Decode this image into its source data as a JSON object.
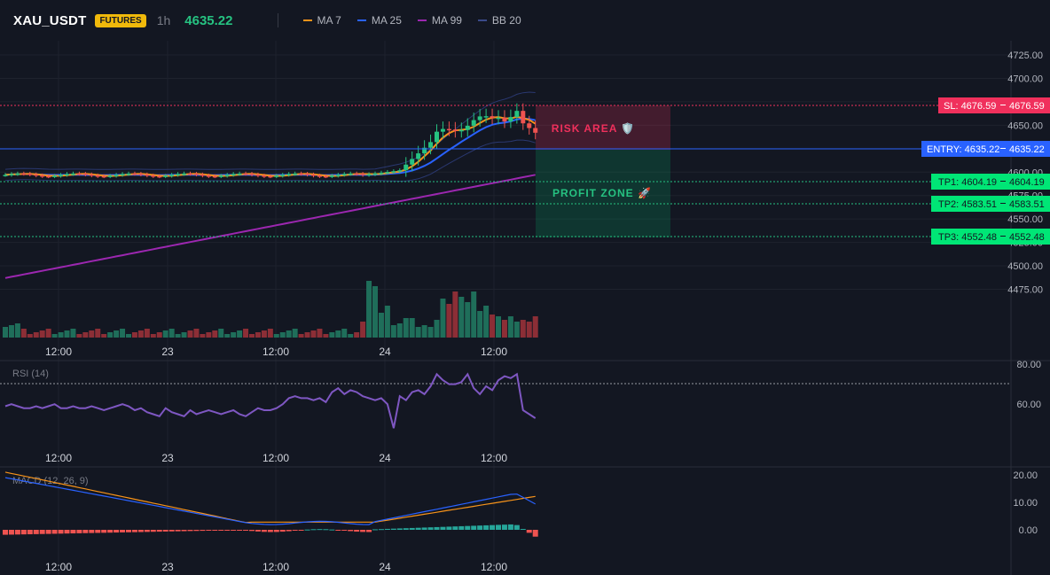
{
  "header": {
    "symbol": "XAU_USDT",
    "badge": "FUTURES",
    "timeframe": "1h",
    "last_price": "4635.22",
    "legend": [
      {
        "label": "MA 7",
        "color": "#f7931a"
      },
      {
        "label": "MA 25",
        "color": "#2962ff"
      },
      {
        "label": "MA 99",
        "color": "#9c27b0"
      },
      {
        "label": "BB 20",
        "color": "#3a4a8a"
      }
    ]
  },
  "colors": {
    "up": "#26c281",
    "down": "#ef5350",
    "background": "#131722",
    "sl": "#f0305c",
    "entry": "#2962ff",
    "tp": "#00e676"
  },
  "price_axis": {
    "ticks": [
      "4725.00",
      "4700.00",
      "4675.00",
      "4650.00",
      "4625.00",
      "4600.00",
      "4575.00",
      "4550.00",
      "4525.00",
      "4500.00",
      "4475.00"
    ],
    "tick_values": [
      4725,
      4700,
      4675,
      4650,
      4625,
      4600,
      4575,
      4550,
      4525,
      4500,
      4475
    ]
  },
  "levels": {
    "sl": {
      "label": "SL: 4676.59",
      "price_label": "4676.59",
      "value": 4676.59
    },
    "entry": {
      "label": "ENTRY: 4635.22",
      "price_label": "4635.22",
      "value": 4635.22
    },
    "tp1": {
      "label": "TP1: 4604.19",
      "price_label": "4604.19",
      "value": 4604.19
    },
    "tp2": {
      "label": "TP2: 4583.51",
      "price_label": "4583.51",
      "value": 4583.51
    },
    "tp3": {
      "label": "TP3: 4552.48",
      "price_label": "4552.48",
      "value": 4552.48
    }
  },
  "zones": {
    "risk": "RISK AREA 🛡️",
    "profit": "PROFIT ZONE 🚀"
  },
  "time_axis": [
    "12:00",
    "23",
    "12:00",
    "24",
    "12:00"
  ],
  "rsi": {
    "label": "RSI (14)",
    "ticks": [
      "80.00",
      "60.00"
    ],
    "tick_values": [
      80,
      60
    ],
    "values": [
      59,
      60,
      59,
      58,
      58,
      59,
      58,
      59,
      60,
      58,
      58,
      59,
      58,
      58,
      59,
      58,
      57,
      58,
      59,
      60,
      59,
      57,
      58,
      56,
      55,
      54,
      58,
      56,
      55,
      54,
      57,
      55,
      56,
      57,
      56,
      55,
      56,
      57,
      55,
      54,
      56,
      58,
      57,
      57,
      58,
      60,
      63,
      64,
      63,
      63,
      62,
      63,
      61,
      66,
      68,
      65,
      67,
      66,
      64,
      63,
      62,
      63,
      60,
      48,
      64,
      62,
      66,
      67,
      65,
      69,
      75,
      72,
      70,
      70,
      71,
      75,
      68,
      65,
      69,
      67,
      72,
      74,
      73,
      75,
      57,
      55,
      53
    ]
  },
  "macd": {
    "label": "MACD (12, 26, 9)",
    "ticks": [
      "20.00",
      "10.00",
      "0.00"
    ],
    "tick_values": [
      20,
      10,
      0
    ]
  }
}
